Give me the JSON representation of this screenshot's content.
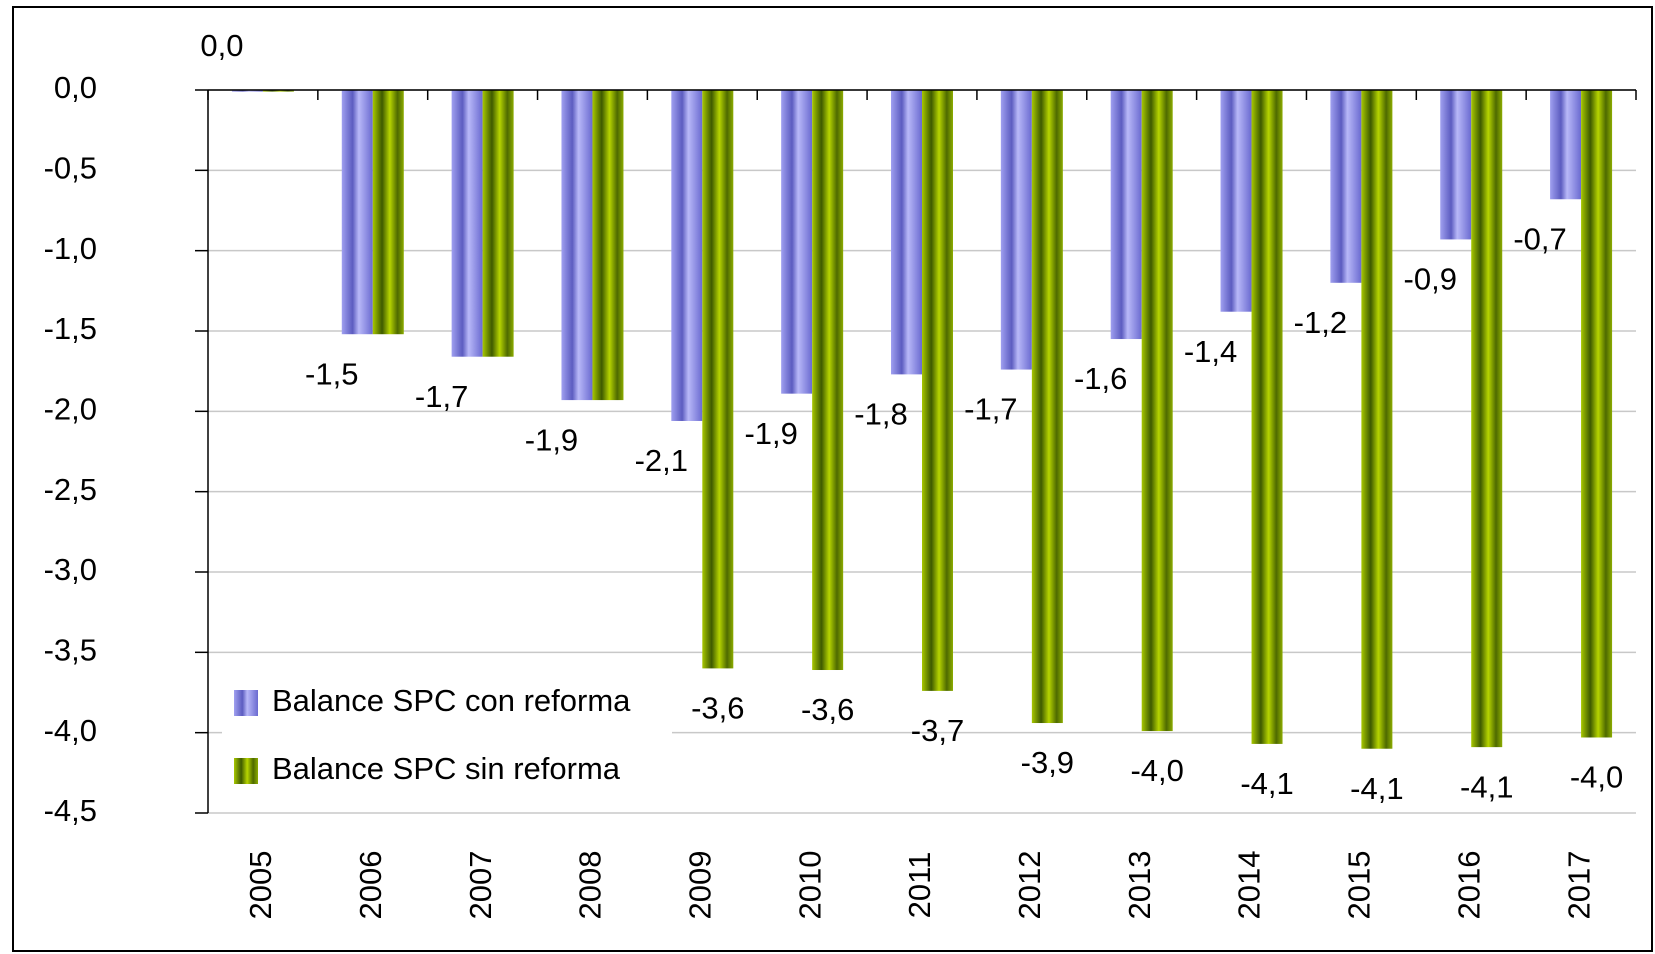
{
  "chart_data": {
    "type": "bar",
    "categories": [
      "2005",
      "2006",
      "2007",
      "2008",
      "2009",
      "2010",
      "2011",
      "2012",
      "2013",
      "2014",
      "2015",
      "2016",
      "2017"
    ],
    "series": [
      {
        "name": "Balance SPC con reforma",
        "color": "#7f7fe0",
        "values": [
          -0.01,
          -1.52,
          -1.66,
          -1.93,
          -2.06,
          -1.89,
          -1.77,
          -1.74,
          -1.55,
          -1.38,
          -1.2,
          -0.93,
          -0.68
        ],
        "value_labels": [
          "0,0",
          "-1,5",
          "-1,7",
          "-1,9",
          "-2,1",
          "-1,9",
          "-1,8",
          "-1,7",
          "-1,6",
          "-1,4",
          "-1,2",
          "-0,9",
          "-0,7"
        ]
      },
      {
        "name": "Balance SPC sin reforma",
        "color": "#7a9a00",
        "values": [
          -0.01,
          -1.52,
          -1.66,
          -1.93,
          -3.6,
          -3.61,
          -3.74,
          -3.94,
          -3.99,
          -4.07,
          -4.1,
          -4.09,
          -4.03
        ],
        "value_labels": [
          null,
          null,
          null,
          null,
          "-3,6",
          "-3,6",
          "-3,7",
          "-3,9",
          "-4,0",
          "-4,1",
          "-4,1",
          "-4,1",
          "-4,0"
        ]
      }
    ],
    "ylim": [
      -4.5,
      0
    ],
    "yticks": [
      {
        "value": 0,
        "label": "0,0"
      },
      {
        "value": -0.5,
        "label": "-0,5"
      },
      {
        "value": -1,
        "label": "-1,0"
      },
      {
        "value": -1.5,
        "label": "-1,5"
      },
      {
        "value": -2,
        "label": "-2,0"
      },
      {
        "value": -2.5,
        "label": "-2,5"
      },
      {
        "value": -3,
        "label": "-3,0"
      },
      {
        "value": -3.5,
        "label": "-3,5"
      },
      {
        "value": -4,
        "label": "-4,0"
      },
      {
        "value": -4.5,
        "label": "-4,5"
      }
    ],
    "grid": true,
    "legend": "lower left"
  }
}
